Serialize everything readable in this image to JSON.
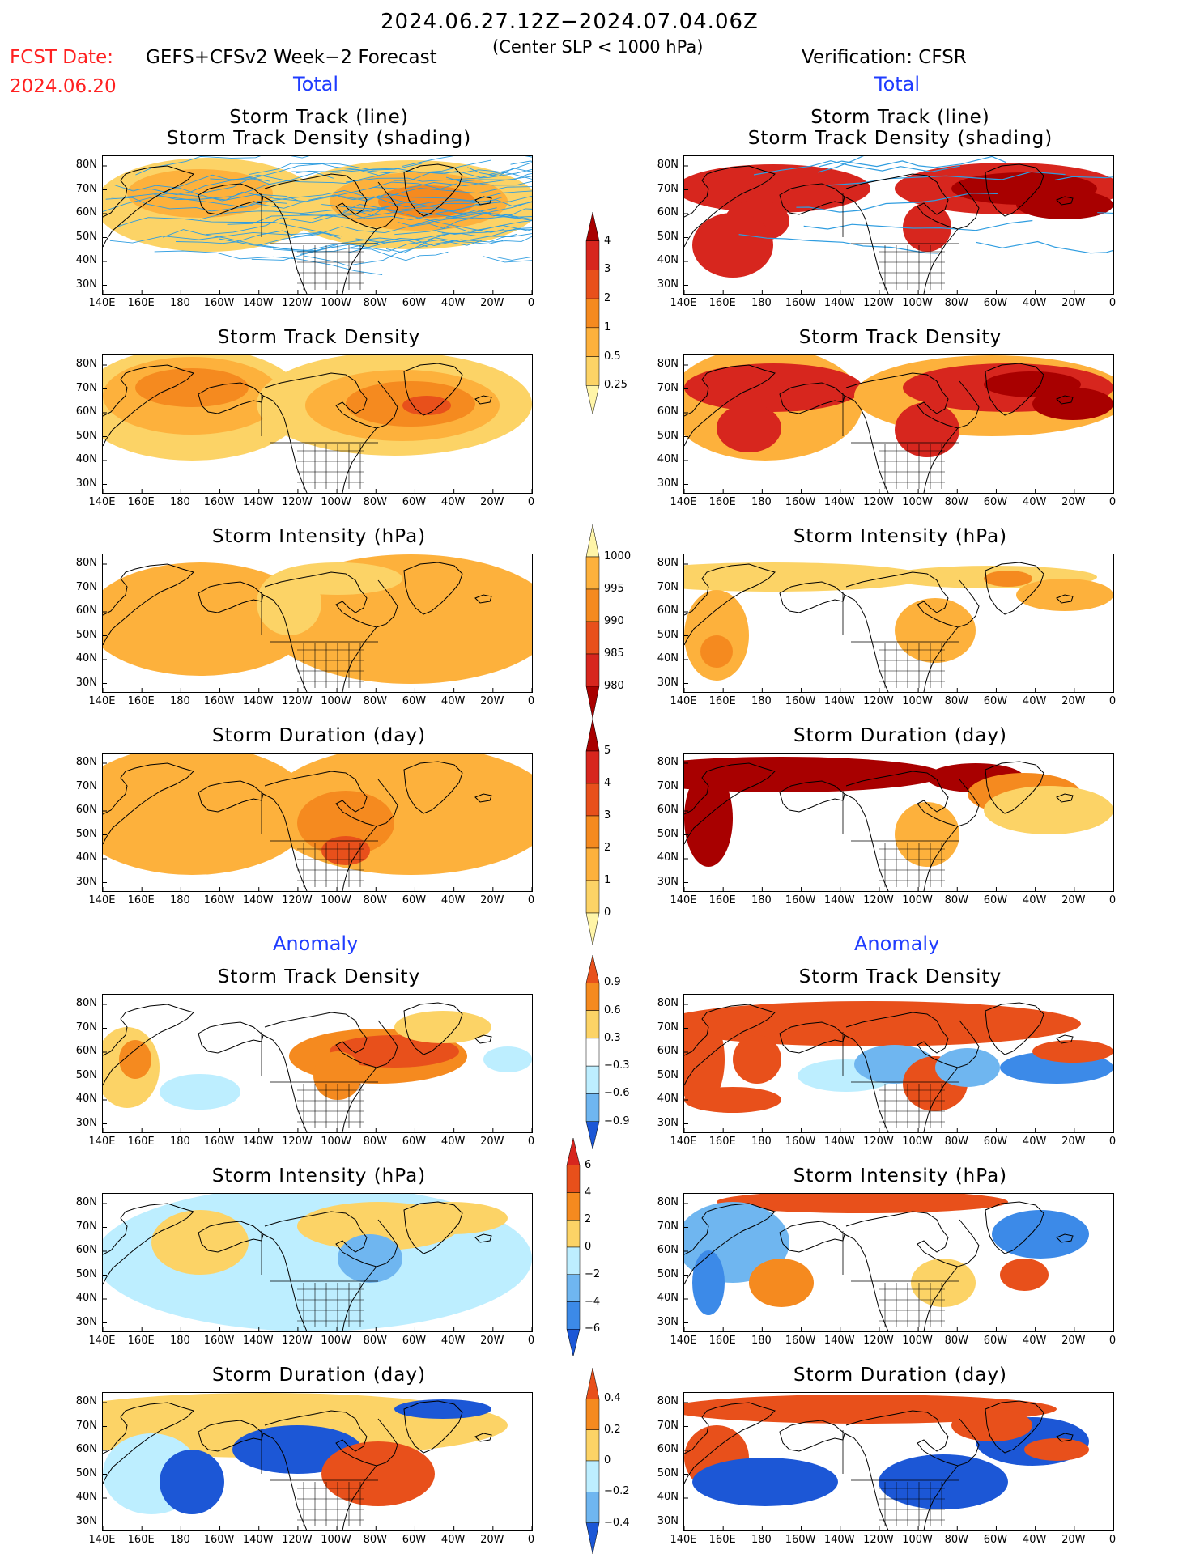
{
  "header": {
    "period": "2024.06.27.12Z−2024.07.04.06Z",
    "fcst_label": "FCST Date:",
    "fcst_model": "GEFS+CFSv2 Week−2 Forecast",
    "fcst_date": "2024.06.20",
    "criterion": "(Center SLP < 1000 hPa)",
    "verification": "Verification: CFSR"
  },
  "sections": {
    "total": "Total",
    "anomaly": "Anomaly"
  },
  "panel_titles": {
    "track_line": "Storm Track (line)",
    "track_shading": "Storm Track Density (shading)",
    "track_density": "Storm Track Density",
    "intensity": "Storm Intensity (hPa)",
    "duration": "Storm Duration (day)"
  },
  "axes": {
    "lat_labels": [
      "80N",
      "70N",
      "60N",
      "50N",
      "40N",
      "30N"
    ],
    "lon_labels": [
      "140E",
      "160E",
      "180",
      "160W",
      "140W",
      "120W",
      "100W",
      "80W",
      "60W",
      "40W",
      "20W",
      "0"
    ]
  },
  "colorbars": {
    "density_total": [
      "4",
      "3",
      "2",
      "1",
      "0.5",
      "0.25"
    ],
    "intensity_total": [
      "1000",
      "995",
      "990",
      "985",
      "980"
    ],
    "duration_total": [
      "5",
      "4",
      "3",
      "2",
      "1",
      "0"
    ],
    "density_anom": [
      "0.9",
      "0.6",
      "0.3",
      "−0.3",
      "−0.6",
      "−0.9"
    ],
    "intensity_anom": [
      "6",
      "4",
      "2",
      "0",
      "−2",
      "−4",
      "−6"
    ],
    "duration_anom": [
      "0.4",
      "0.2",
      "0",
      "−0.2",
      "−0.4"
    ]
  },
  "colors": {
    "yellow_light": "#fff5a8",
    "yellow": "#fcd366",
    "orange_light": "#fdb13c",
    "orange": "#f58a1f",
    "orange_dark": "#e8501b",
    "red": "#d7261e",
    "dark_red": "#a80000",
    "blue_light": "#bdeeff",
    "blue": "#6fb6f0",
    "blue_mid": "#3c8ae8",
    "blue_dark": "#1c57d6",
    "track_line": "#2f9de0"
  }
}
